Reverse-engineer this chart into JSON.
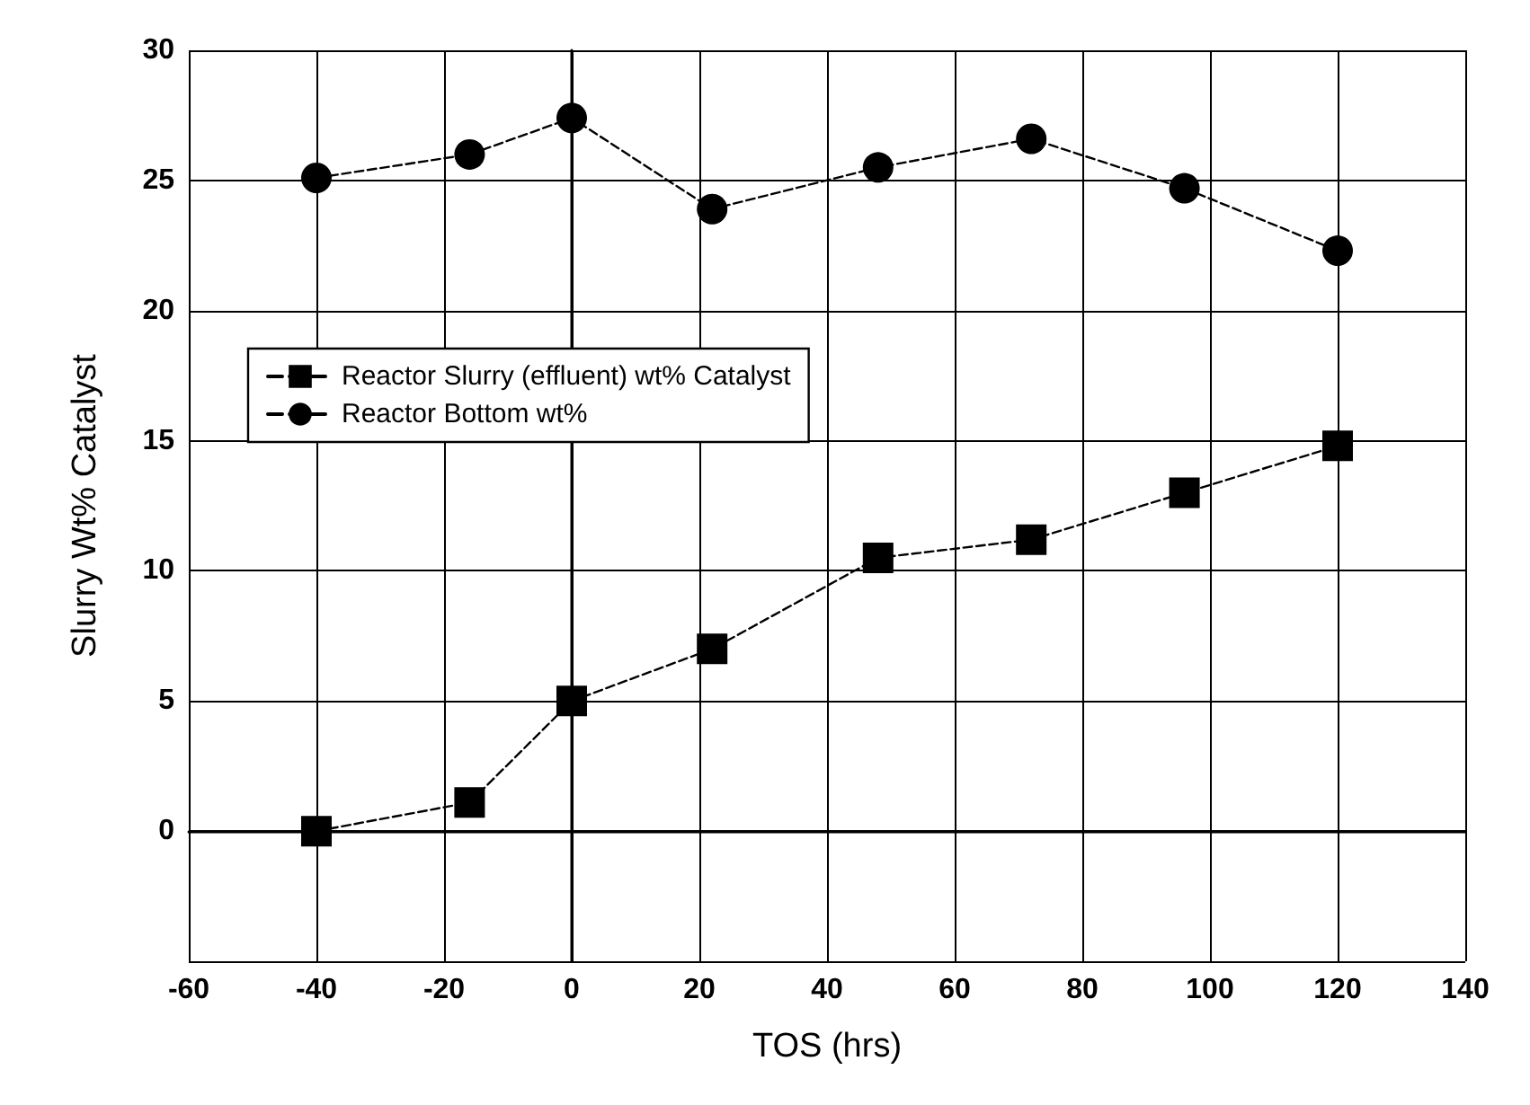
{
  "chart_data": {
    "type": "line",
    "xlabel": "TOS (hrs)",
    "ylabel": "Slurry Wt% Catalyst",
    "xlim": [
      -60,
      140
    ],
    "xticks": [
      -60,
      -40,
      -20,
      0,
      20,
      40,
      60,
      80,
      100,
      120,
      140
    ],
    "ylim": [
      -5,
      30
    ],
    "yticks": [
      {
        "value": -5,
        "label": null
      },
      0,
      5,
      10,
      15,
      20,
      25,
      30
    ],
    "grid": true,
    "legend": "top left",
    "line_style": "dashed",
    "series": [
      {
        "name": "Reactor Slurry (effluent) wt% Catalyst",
        "color": "#000000",
        "marker": "square",
        "x": [
          -40,
          -16,
          0,
          22,
          48,
          72,
          96,
          120
        ],
        "values": [
          0,
          1.1,
          5.0,
          7.0,
          10.5,
          11.2,
          13.0,
          14.8
        ]
      },
      {
        "name": "Reactor Bottom wt%",
        "color": "#000000",
        "marker": "circle",
        "x": [
          -40,
          -16,
          0,
          22,
          48,
          72,
          96,
          120
        ],
        "values": [
          25.1,
          26.0,
          27.4,
          23.9,
          25.5,
          26.6,
          24.7,
          22.3
        ]
      }
    ]
  }
}
